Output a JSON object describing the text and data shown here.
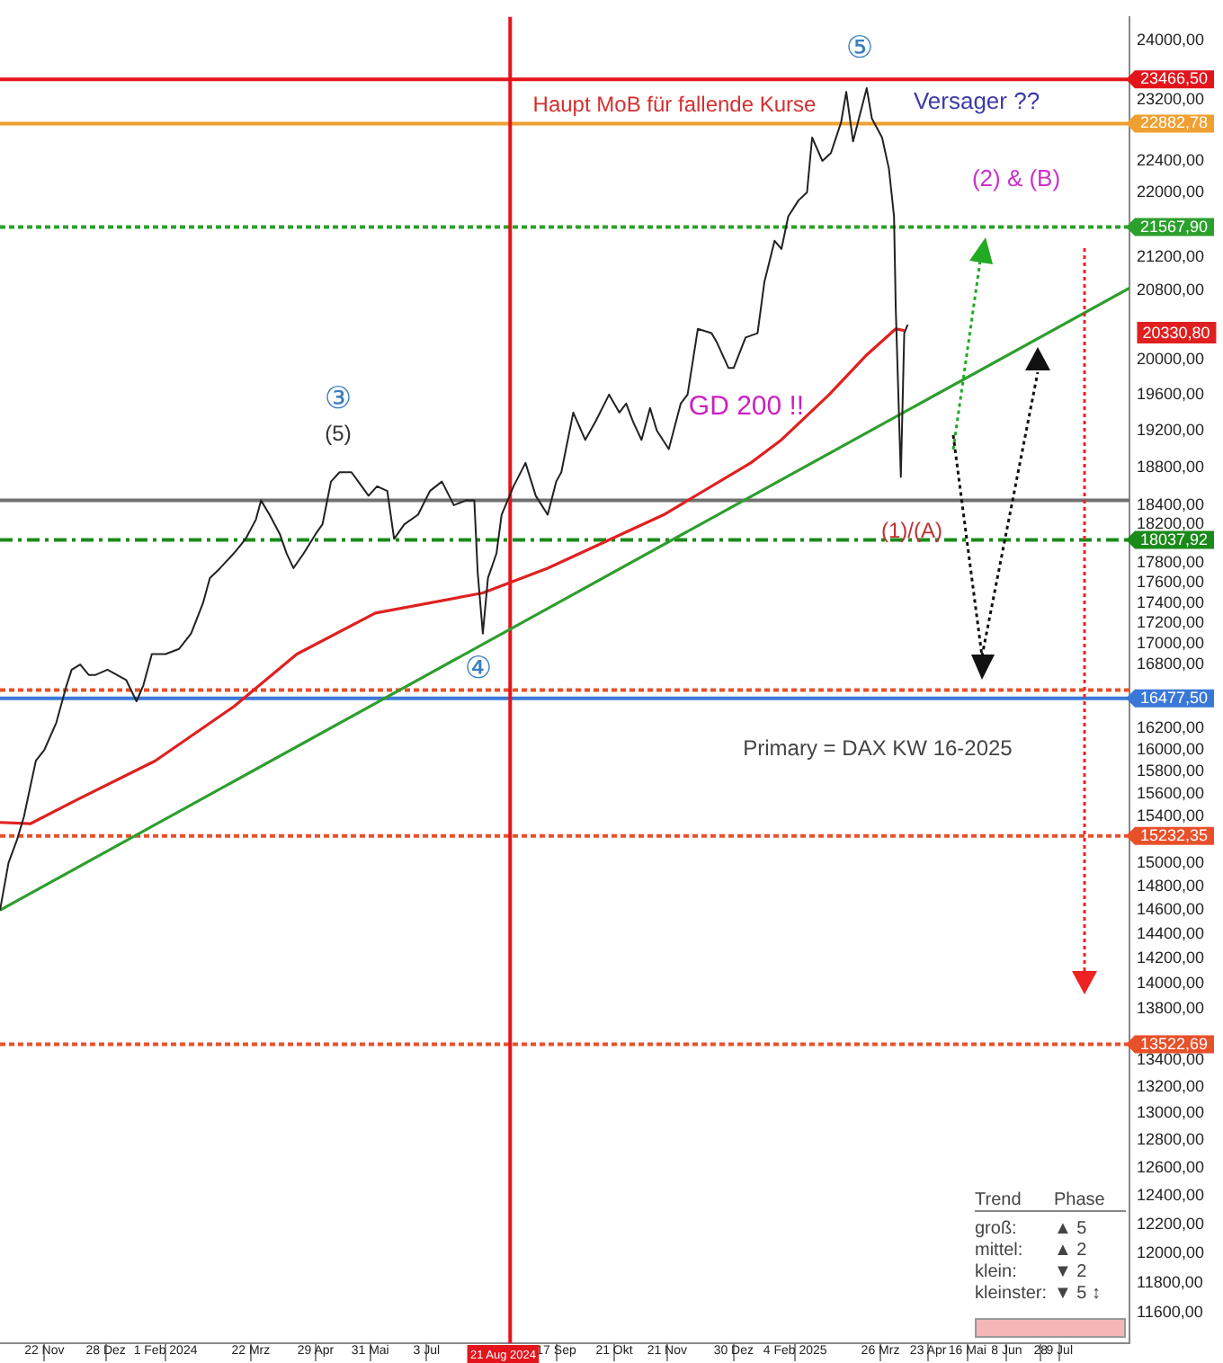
{
  "chart_data": {
    "type": "line",
    "log": "y",
    "marker": "none",
    "line_style": "solid",
    "grid": false,
    "xlim": [
      "2023-10-27",
      "2025-08-19"
    ],
    "xticks": [
      {
        "value": "2023-11-22",
        "label": "22 Nov"
      },
      {
        "value": "2023-12-28",
        "label": "28 Dez"
      },
      {
        "value": "2024-02-01",
        "label": "1 Feb 2024"
      },
      {
        "value": "2024-03-22",
        "label": "22 Mrz"
      },
      {
        "value": "2024-04-29",
        "label": "29 Apr"
      },
      {
        "value": "2024-05-31",
        "label": "31 Mai"
      },
      {
        "value": "2024-07-03",
        "label": "3 Jul"
      },
      {
        "value": "2024-09-17",
        "label": "17 Sep"
      },
      {
        "value": "2024-10-21",
        "label": "21 Okt"
      },
      {
        "value": "2024-11-21",
        "label": "21 Nov"
      },
      {
        "value": "2024-12-30",
        "label": "30 Dez"
      },
      {
        "value": "2025-02-04",
        "label": "4 Feb 2025"
      },
      {
        "value": "2025-03-26",
        "label": "26 Mrz"
      },
      {
        "value": "2025-04-23",
        "label": "23 Apr"
      },
      {
        "value": "2025-05-16",
        "label": "16 Mai"
      },
      {
        "value": "2025-06-08",
        "label": "8 Jun"
      },
      {
        "value": "2025-06-28",
        "label": "28"
      },
      {
        "value": "2025-07-09",
        "label": "9 Jul"
      }
    ],
    "ylim": [
      11400,
      24320
    ],
    "yticks": [
      {
        "value": 24000,
        "label": "24000,00"
      },
      {
        "value": 23200,
        "label": "23200,00"
      },
      {
        "value": 22400,
        "label": "22400,00"
      },
      {
        "value": 22000,
        "label": "22000,00"
      },
      {
        "value": 21200,
        "label": "21200,00"
      },
      {
        "value": 20800,
        "label": "20800,00"
      },
      {
        "value": 20000,
        "label": "20000,00"
      },
      {
        "value": 19600,
        "label": "19600,00"
      },
      {
        "value": 19200,
        "label": "19200,00"
      },
      {
        "value": 18800,
        "label": "18800,00"
      },
      {
        "value": 18400,
        "label": "18400,00"
      },
      {
        "value": 18200,
        "label": "18200,00"
      },
      {
        "value": 17800,
        "label": "17800,00"
      },
      {
        "value": 17600,
        "label": "17600,00"
      },
      {
        "value": 17400,
        "label": "17400,00"
      },
      {
        "value": 17200,
        "label": "17200,00"
      },
      {
        "value": 17000,
        "label": "17000,00"
      },
      {
        "value": 16800,
        "label": "16800,00"
      },
      {
        "value": 16200,
        "label": "16200,00"
      },
      {
        "value": 16000,
        "label": "16000,00"
      },
      {
        "value": 15800,
        "label": "15800,00"
      },
      {
        "value": 15600,
        "label": "15600,00"
      },
      {
        "value": 15400,
        "label": "15400,00"
      },
      {
        "value": 15000,
        "label": "15000,00"
      },
      {
        "value": 14800,
        "label": "14800,00"
      },
      {
        "value": 14600,
        "label": "14600,00"
      },
      {
        "value": 14400,
        "label": "14400,00"
      },
      {
        "value": 14200,
        "label": "14200,00"
      },
      {
        "value": 14000,
        "label": "14000,00"
      },
      {
        "value": 13800,
        "label": "13800,00"
      },
      {
        "value": 13400,
        "label": "13400,00"
      },
      {
        "value": 13200,
        "label": "13200,00"
      },
      {
        "value": 13000,
        "label": "13000,00"
      },
      {
        "value": 12800,
        "label": "12800,00"
      },
      {
        "value": 12600,
        "label": "12600,00"
      },
      {
        "value": 12400,
        "label": "12400,00"
      },
      {
        "value": 12200,
        "label": "12200,00"
      },
      {
        "value": 12000,
        "label": "12000,00"
      },
      {
        "value": 11800,
        "label": "11800,00"
      },
      {
        "value": 11600,
        "label": "11600,00"
      }
    ],
    "series": [
      {
        "type": "line",
        "color": "#222222",
        "x": [
          "2023-10-27",
          "2023-11-01",
          "2023-11-06",
          "2023-11-10",
          "2023-11-17",
          "2023-11-22",
          "2023-11-29",
          "2023-12-05",
          "2023-12-08",
          "2023-12-13",
          "2023-12-18",
          "2023-12-22",
          "2023-12-29",
          "2024-01-09",
          "2024-01-15",
          "2024-01-19",
          "2024-01-24",
          "2024-02-01",
          "2024-02-09",
          "2024-02-16",
          "2024-02-23",
          "2024-02-27",
          "2024-03-04",
          "2024-03-12",
          "2024-03-19",
          "2024-03-25",
          "2024-03-28",
          "2024-04-02",
          "2024-04-08",
          "2024-04-12",
          "2024-04-16",
          "2024-04-22",
          "2024-04-29",
          "2024-05-03",
          "2024-05-08",
          "2024-05-13",
          "2024-05-20",
          "2024-05-24",
          "2024-05-30",
          "2024-06-04",
          "2024-06-10",
          "2024-06-14",
          "2024-06-20",
          "2024-06-28",
          "2024-07-05",
          "2024-07-12",
          "2024-07-19",
          "2024-07-26",
          "2024-07-31",
          "2024-08-02",
          "2024-08-05",
          "2024-08-08",
          "2024-08-13",
          "2024-08-16",
          "2024-08-23",
          "2024-08-30",
          "2024-09-05",
          "2024-09-12",
          "2024-09-17",
          "2024-09-20",
          "2024-09-27",
          "2024-10-04",
          "2024-10-10",
          "2024-10-18",
          "2024-10-24",
          "2024-10-28",
          "2024-11-01",
          "2024-11-06",
          "2024-11-11",
          "2024-11-15",
          "2024-11-22",
          "2024-11-29",
          "2024-12-03",
          "2024-12-09",
          "2024-12-17",
          "2024-12-20",
          "2024-12-27",
          "2024-12-30",
          "2025-01-06",
          "2025-01-13",
          "2025-01-17",
          "2025-01-23",
          "2025-01-27",
          "2025-01-31",
          "2025-02-06",
          "2025-02-11",
          "2025-02-14",
          "2025-02-20",
          "2025-02-25",
          "2025-03-03",
          "2025-03-06",
          "2025-03-10",
          "2025-03-14",
          "2025-03-18",
          "2025-03-21",
          "2025-03-27",
          "2025-03-31",
          "2025-04-03",
          "2025-04-04",
          "2025-04-07",
          "2025-04-09",
          "2025-04-11"
        ],
        "values": [
          14600,
          15000,
          15200,
          15400,
          15900,
          16000,
          16250,
          16600,
          16750,
          16800,
          16700,
          16700,
          16750,
          16650,
          16450,
          16600,
          16900,
          16900,
          16950,
          17100,
          17400,
          17650,
          17750,
          17900,
          18050,
          18250,
          18450,
          18300,
          18100,
          17900,
          17750,
          17900,
          18100,
          18200,
          18650,
          18750,
          18750,
          18650,
          18500,
          18600,
          18550,
          18050,
          18200,
          18300,
          18550,
          18650,
          18400,
          18450,
          18450,
          17700,
          17100,
          17650,
          17900,
          18300,
          18600,
          18850,
          18500,
          18300,
          18650,
          18750,
          19400,
          19100,
          19300,
          19600,
          19400,
          19500,
          19300,
          19100,
          19450,
          19200,
          19000,
          19500,
          19600,
          20350,
          20300,
          20200,
          19900,
          19900,
          20250,
          20300,
          20900,
          21400,
          21300,
          21700,
          21900,
          22000,
          22700,
          22400,
          22500,
          22900,
          23300,
          22650,
          23000,
          23350,
          22950,
          22700,
          22300,
          21700,
          20600,
          18700,
          20300,
          20400
        ]
      },
      {
        "type": "line",
        "color": "#e02020",
        "x": [
          "2023-10-27",
          "2023-11-14",
          "2023-12-11",
          "2024-01-26",
          "2024-03-12",
          "2024-04-18",
          "2024-06-03",
          "2024-08-05",
          "2024-09-12",
          "2024-11-19",
          "2025-01-09",
          "2025-01-27",
          "2025-02-24",
          "2025-03-18",
          "2025-04-04",
          "2025-04-09"
        ],
        "values": [
          15350,
          15340,
          15550,
          15900,
          16400,
          16900,
          17300,
          17500,
          17750,
          18300,
          18850,
          19100,
          19600,
          20050,
          20350,
          20330.8
        ]
      },
      {
        "type": "line",
        "color": "#2e9e2e",
        "x": [
          "2023-10-27",
          "2025-08-19"
        ],
        "values": [
          14600,
          20830
        ]
      }
    ],
    "ref_lines": [
      {
        "axis": "y",
        "value": 23466.5,
        "label": "23466,50",
        "color": "#e3141b",
        "line_style": "solid"
      },
      {
        "axis": "y",
        "value": 22882.78,
        "label": "22882,78",
        "color": "#f0a030",
        "line_style": "solid"
      },
      {
        "axis": "y",
        "value": 21567.9,
        "label": "21567,90",
        "color": "#2ca02c",
        "line_style": "dotted"
      },
      {
        "axis": "y",
        "value": 18450,
        "color": "#707070",
        "line_style": "solid"
      },
      {
        "axis": "y",
        "value": 18037.92,
        "label": "18037,92",
        "color": "#1a8a1a",
        "line_style": "dashed"
      },
      {
        "axis": "y",
        "value": 16556.4,
        "color": "#e8502a",
        "line_style": "dotted"
      },
      {
        "axis": "y",
        "value": 16477.5,
        "label": "16477,50",
        "color": "#3a78d8",
        "line_style": "solid"
      },
      {
        "axis": "y",
        "value": 15232.35,
        "label": "15232,35",
        "color": "#e8502a",
        "line_style": "dotted"
      },
      {
        "axis": "y",
        "value": 13522.69,
        "label": "13522,69",
        "color": "#e8502a",
        "line_style": "dotted"
      },
      {
        "axis": "x",
        "value": "2024-08-21",
        "label": "21 Aug 2024",
        "color": "#e3141b",
        "line_style": "solid"
      }
    ],
    "annotations": [
      "⑤",
      "Haupt MoB für fallende Kurse",
      "Versager ??",
      "(2) & (B)",
      "③",
      "(5)",
      "GD 200 !!",
      "④",
      "(1)/(A)",
      "Primary = DAX KW 16-2025",
      "20330,80",
      "Trend",
      "Phase",
      "groß:",
      "▲ 5",
      "mittel:",
      "▲ 2",
      "klein:",
      "▼ 2",
      "kleinster:",
      "▼ 5 ↕"
    ]
  }
}
